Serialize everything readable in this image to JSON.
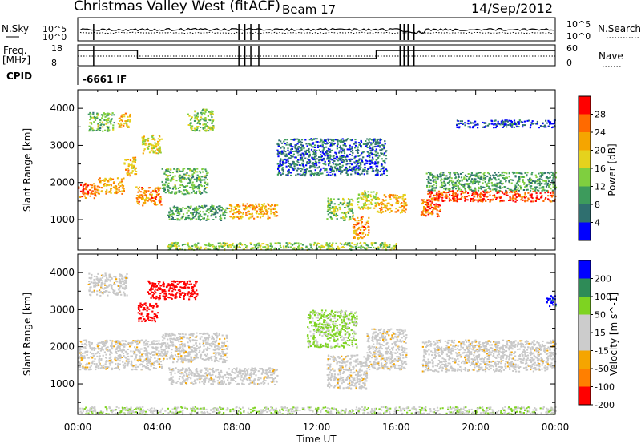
{
  "header": {
    "station": "Christmas Valley West (fitACF)",
    "beam": "Beam 17",
    "date": "14/Sep/2012"
  },
  "top_panels": {
    "nsky_label": "N.Sky",
    "nsky_ticks": [
      "10^5",
      "10^0"
    ],
    "nsearch_label": "N.Search",
    "nsearch_ticks": [
      "10^5",
      "10^0"
    ],
    "freq_label_1": "Freq.",
    "freq_label_2": "[MHz]",
    "freq_ticks": [
      "18",
      "8"
    ],
    "nave_label": "Nave",
    "nave_ticks": [
      "60",
      "0"
    ],
    "cpid_label": "CPID",
    "cpid_value": "-6661 IF"
  },
  "colors": {
    "power": [
      "#0000ff",
      "#2f6f6f",
      "#3d9b5c",
      "#7fcf3f",
      "#e5d21d",
      "#f5a500",
      "#ff6a00",
      "#ff0000"
    ],
    "velocity": [
      "#0000ff",
      "#2e8b57",
      "#7ed321",
      "#cccccc",
      "#cccccc",
      "#f5a500",
      "#ff7f00",
      "#ff0000"
    ],
    "ground": "#c8c8c8"
  },
  "chart_data": [
    {
      "type": "heatmap",
      "name": "power",
      "ylabel": "Slant Range [km]",
      "xlabel": "Time UT",
      "xticks": [
        "00:00",
        "04:00",
        "08:00",
        "12:00",
        "16:00",
        "20:00",
        "00:00"
      ],
      "xlim_hours": [
        0,
        24
      ],
      "yticks": [
        "1000",
        "2000",
        "3000",
        "4000"
      ],
      "ylim": [
        180,
        4500
      ],
      "colorbar_label": "Power [dB]",
      "colorbar_ticks": [
        "28",
        "24",
        "20",
        "16",
        "12",
        "8",
        "4"
      ],
      "colorbar_range": [
        0,
        32
      ],
      "echo_regions": [
        {
          "t": [
            0.0,
            1.0
          ],
          "r": [
            1600,
            2000
          ],
          "p": 26
        },
        {
          "t": [
            1.0,
            2.3
          ],
          "r": [
            1700,
            2150
          ],
          "p": 22
        },
        {
          "t": [
            2.3,
            2.9
          ],
          "r": [
            2200,
            2700
          ],
          "p": 20
        },
        {
          "t": [
            2.9,
            4.2
          ],
          "r": [
            1400,
            1900
          ],
          "p": 24
        },
        {
          "t": [
            4.2,
            6.5
          ],
          "r": [
            1700,
            2400
          ],
          "p": 12
        },
        {
          "t": [
            3.2,
            4.2
          ],
          "r": [
            2800,
            3300
          ],
          "p": 18
        },
        {
          "t": [
            0.5,
            1.8
          ],
          "r": [
            3400,
            3900
          ],
          "p": 12
        },
        {
          "t": [
            2.0,
            2.6
          ],
          "r": [
            3500,
            3900
          ],
          "p": 20
        },
        {
          "t": [
            5.5,
            6.8
          ],
          "r": [
            3400,
            4000
          ],
          "p": 14
        },
        {
          "t": [
            4.5,
            7.5
          ],
          "r": [
            1000,
            1400
          ],
          "p": 10
        },
        {
          "t": [
            7.5,
            10.0
          ],
          "r": [
            1050,
            1450
          ],
          "p": 22
        },
        {
          "t": [
            4.5,
            16.0
          ],
          "r": [
            200,
            400
          ],
          "p": 14
        },
        {
          "t": [
            12.5,
            13.8
          ],
          "r": [
            1000,
            1600
          ],
          "p": 14
        },
        {
          "t": [
            13.8,
            14.6
          ],
          "r": [
            500,
            1100
          ],
          "p": 24
        },
        {
          "t": [
            14.0,
            15.0
          ],
          "r": [
            1300,
            1800
          ],
          "p": 16
        },
        {
          "t": [
            15.0,
            16.5
          ],
          "r": [
            1200,
            1700
          ],
          "p": 22
        },
        {
          "t": [
            17.2,
            18.2
          ],
          "r": [
            1100,
            1600
          ],
          "p": 26
        },
        {
          "t": [
            17.5,
            24.0
          ],
          "r": [
            1500,
            1800
          ],
          "p": 28
        },
        {
          "t": [
            17.5,
            24.0
          ],
          "r": [
            1800,
            2300
          ],
          "p": 10
        },
        {
          "t": [
            10.0,
            15.5
          ],
          "r": [
            2200,
            3200
          ],
          "p": 6
        },
        {
          "t": [
            19.0,
            24.0
          ],
          "r": [
            3500,
            3700
          ],
          "p": 4
        }
      ]
    },
    {
      "type": "heatmap",
      "name": "velocity",
      "ylabel": "Slant Range [km]",
      "xlabel": "Time UT",
      "xticks": [
        "00:00",
        "04:00",
        "08:00",
        "12:00",
        "16:00",
        "20:00",
        "00:00"
      ],
      "xlim_hours": [
        0,
        24
      ],
      "yticks": [
        "1000",
        "2000",
        "3000",
        "4000"
      ],
      "ylim": [
        180,
        4500
      ],
      "colorbar_label": "Velocity [m s^-1]",
      "colorbar_ticks": [
        "200",
        "100",
        "50",
        "15",
        "-15",
        "-50",
        "-100",
        "-200"
      ],
      "colorbar_range": [
        -250,
        250
      ],
      "echo_regions": [
        {
          "t": [
            0.0,
            4.2
          ],
          "r": [
            1400,
            2200
          ],
          "v": 0
        },
        {
          "t": [
            4.2,
            7.5
          ],
          "r": [
            1600,
            2400
          ],
          "v": 0
        },
        {
          "t": [
            4.5,
            10.0
          ],
          "r": [
            1000,
            1450
          ],
          "v": 0
        },
        {
          "t": [
            3.0,
            4.0
          ],
          "r": [
            2700,
            3200
          ],
          "v": -220
        },
        {
          "t": [
            3.5,
            6.0
          ],
          "r": [
            3300,
            3800
          ],
          "v": -200
        },
        {
          "t": [
            0.5,
            2.5
          ],
          "r": [
            3400,
            4000
          ],
          "v": 0
        },
        {
          "t": [
            12.5,
            14.5
          ],
          "r": [
            900,
            1800
          ],
          "v": 0
        },
        {
          "t": [
            14.5,
            16.5
          ],
          "r": [
            1400,
            2500
          ],
          "v": 0
        },
        {
          "t": [
            17.3,
            24.0
          ],
          "r": [
            1350,
            2200
          ],
          "v": 0
        },
        {
          "t": [
            0.0,
            24.0
          ],
          "r": [
            200,
            400
          ],
          "v": 40
        },
        {
          "t": [
            11.5,
            14.0
          ],
          "r": [
            2000,
            3000
          ],
          "v": 60
        },
        {
          "t": [
            23.5,
            24.0
          ],
          "r": [
            3100,
            3400
          ],
          "v": 220
        }
      ]
    }
  ]
}
